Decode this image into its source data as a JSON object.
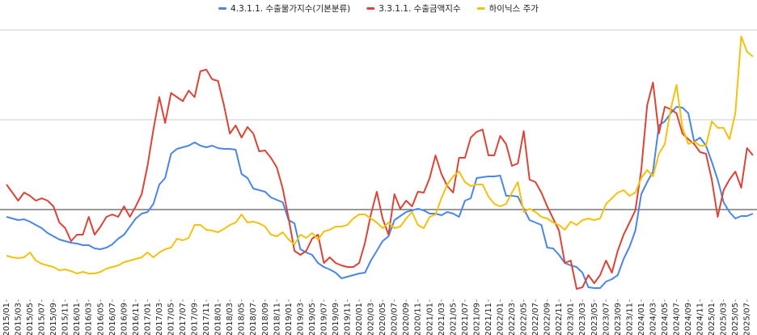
{
  "chart_data": {
    "type": "line",
    "categories": [
      "2015/01",
      null,
      "2015/03",
      null,
      "2015/05",
      null,
      "2015/07",
      null,
      "2015/09",
      null,
      "2015/11",
      null,
      "2016/01",
      null,
      "2016/03",
      null,
      "2016/05",
      null,
      "2016/07",
      null,
      "2016/09",
      null,
      "2016/11",
      null,
      "2017/01",
      null,
      "2017/03",
      null,
      "2017/05",
      null,
      "2017/07",
      null,
      "2017/09",
      null,
      "2017/11",
      null,
      "2018/01",
      null,
      "2018/03",
      null,
      "2018/05",
      null,
      "2018/07",
      null,
      "2018/09",
      null,
      "2018/11",
      null,
      "2019/01",
      null,
      "2019/03",
      null,
      "2019/05",
      null,
      "2019/07",
      null,
      "2019/09",
      null,
      "2019/11",
      null,
      "2020/01",
      null,
      "2020/03",
      null,
      "2020/05",
      null,
      "2020/07",
      null,
      "2020/09",
      null,
      "2020/11",
      null,
      "2021/01",
      null,
      "2021/03",
      null,
      "2021/05",
      null,
      "2021/07",
      null,
      "2021/09",
      null,
      "2021/11",
      null,
      "2022/01",
      null,
      "2022/03",
      null,
      "2022/05",
      null,
      "2022/07",
      null,
      "2022/09",
      null,
      "2022/11",
      null,
      "2023/01",
      null,
      "2023/03",
      null,
      "2023/05",
      null,
      "2023/07",
      null,
      "2023/09",
      null,
      "2023/11",
      null,
      "2024/01",
      null,
      "2024/03",
      null,
      "2024/05",
      null,
      "2024/07",
      null,
      "2024/09",
      null,
      "2024/11",
      null,
      "2025/01",
      null,
      "2025/03",
      null,
      "2025/05",
      null,
      "2025/07",
      null
    ],
    "series": [
      {
        "name": "4.3.1.1. 수출물가지수(기본분류)",
        "color": "#4a86e8",
        "values": [
          102,
          100,
          98,
          99,
          96,
          92,
          88,
          82,
          78,
          74,
          72,
          70,
          69,
          67,
          67,
          63,
          62,
          64,
          68,
          75,
          80,
          90,
          100,
          106,
          108,
          118,
          142,
          150,
          180,
          186,
          188,
          190,
          194,
          190,
          188,
          190,
          187,
          186,
          186,
          185,
          155,
          150,
          137,
          135,
          133,
          126,
          123,
          120,
          98,
          94,
          62,
          58,
          55,
          45,
          40,
          37,
          33,
          26,
          28,
          30,
          32,
          33,
          48,
          60,
          72,
          78,
          98,
          103,
          108,
          110,
          112,
          110,
          106,
          106,
          104,
          108,
          106,
          102,
          122,
          125,
          150,
          151,
          152,
          152,
          153,
          128,
          128,
          127,
          112,
          98,
          95,
          92,
          64,
          63,
          55,
          45,
          42,
          40,
          33,
          15,
          14,
          14,
          22,
          25,
          30,
          50,
          65,
          85,
          130,
          145,
          158,
          215,
          220,
          230,
          238,
          237,
          230,
          195,
          200,
          190,
          170,
          148,
          120,
          108,
          100,
          103,
          103,
          106
        ]
      },
      {
        "name": "3.3.1.1. 수출금액지수",
        "color": "#db4437",
        "values": [
          142,
          132,
          122,
          132,
          128,
          122,
          125,
          122,
          115,
          95,
          88,
          72,
          80,
          80,
          102,
          80,
          90,
          102,
          105,
          102,
          115,
          102,
          115,
          130,
          165,
          210,
          250,
          218,
          255,
          250,
          245,
          258,
          250,
          282,
          284,
          272,
          270,
          240,
          205,
          215,
          200,
          213,
          205,
          183,
          184,
          175,
          163,
          137,
          100,
          60,
          55,
          60,
          75,
          80,
          45,
          52,
          45,
          42,
          40,
          40,
          45,
          70,
          105,
          133,
          100,
          80,
          130,
          112,
          122,
          115,
          133,
          132,
          150,
          178,
          155,
          140,
          132,
          175,
          175,
          200,
          207,
          210,
          178,
          178,
          202,
          192,
          165,
          168,
          208,
          148,
          145,
          132,
          115,
          100,
          85,
          45,
          48,
          13,
          15,
          30,
          20,
          30,
          48,
          33,
          60,
          80,
          95,
          110,
          160,
          240,
          268,
          205,
          238,
          235,
          230,
          205,
          198,
          192,
          182,
          180,
          148,
          102,
          135,
          148,
          158,
          138,
          187,
          178
        ]
      },
      {
        "name": "하이닉스 주가",
        "color": "#f4c20d",
        "values": [
          54,
          52,
          51,
          52,
          58,
          48,
          44,
          42,
          40,
          36,
          37,
          35,
          32,
          34,
          32,
          32,
          34,
          38,
          40,
          42,
          46,
          48,
          50,
          52,
          58,
          52,
          58,
          62,
          64,
          75,
          73,
          76,
          92,
          92,
          86,
          85,
          83,
          87,
          92,
          95,
          105,
          95,
          96,
          94,
          90,
          80,
          78,
          83,
          74,
          68,
          80,
          76,
          82,
          74,
          84,
          86,
          90,
          90,
          92,
          100,
          105,
          105,
          100,
          95,
          88,
          95,
          88,
          90,
          100,
          108,
          92,
          88,
          102,
          105,
          125,
          142,
          152,
          158,
          145,
          140,
          142,
          142,
          127,
          118,
          115,
          118,
          132,
          145,
          108,
          112,
          108,
          102,
          100,
          95,
          92,
          86,
          96,
          92,
          98,
          100,
          98,
          100,
          118,
          125,
          132,
          135,
          128,
          132,
          150,
          160,
          152,
          180,
          192,
          235,
          265,
          212,
          192,
          195,
          190,
          190,
          220,
          212,
          212,
          198,
          230,
          325,
          306,
          300
        ]
      }
    ],
    "ylim": [
      0,
      340
    ],
    "gridlines": [
      222,
      333
    ],
    "baseline": 111,
    "legend": "top"
  }
}
